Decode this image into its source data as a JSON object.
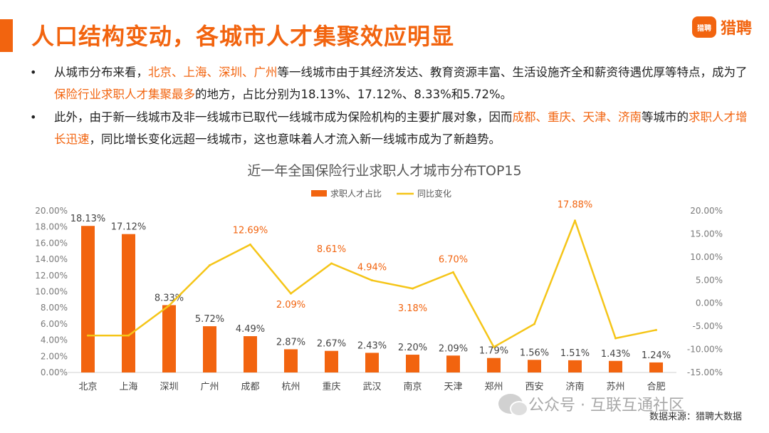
{
  "header": {
    "title": "人口结构变动，各城市人才集聚效应明显",
    "brand_icon": "猎聘",
    "brand_name": "猎聘"
  },
  "bullets": [
    {
      "marker": "•",
      "segments": [
        {
          "text": "从城市分布来看，",
          "hl": false
        },
        {
          "text": "北京、上海、深圳、广州",
          "hl": true
        },
        {
          "text": "等一线城市由于其经济发达、教育资源丰富、生活设施齐全和薪资待遇优厚等特点，成为了",
          "hl": false
        },
        {
          "text": "保险行业求职人才集聚最多",
          "hl": true
        },
        {
          "text": "的地方，占比分别为18.13%、17.12%、8.33%和5.72%。",
          "hl": false
        }
      ]
    },
    {
      "marker": "•",
      "segments": [
        {
          "text": "此外，由于新一线城市及非一线城市已取代一线城市成为保险机构的主要扩展对象，因而",
          "hl": false
        },
        {
          "text": "成都、重庆、天津、济南",
          "hl": true
        },
        {
          "text": "等城市的",
          "hl": false
        },
        {
          "text": "求职人才增长迅速",
          "hl": true
        },
        {
          "text": "，同比增长变化远超一线城市，这也意味着人才流入新一线城市成为了新趋势。",
          "hl": false
        }
      ]
    }
  ],
  "watermark": "公众号 · 互联互通社区",
  "source": "数据来源：猎聘大数据",
  "colors": {
    "accent": "#F2640F",
    "bar": "#F2640F",
    "line": "#F5C518",
    "axis_text": "#7a7a7a"
  },
  "chart_data": {
    "type": "bar+line",
    "title": "近一年全国保险行业求职人才城市分布TOP15",
    "categories": [
      "北京",
      "上海",
      "深圳",
      "广州",
      "成都",
      "杭州",
      "重庆",
      "武汉",
      "南京",
      "天津",
      "郑州",
      "西安",
      "济南",
      "苏州",
      "合肥"
    ],
    "series": [
      {
        "name": "求职人才占比",
        "kind": "bar",
        "axis": "left",
        "values": [
          18.13,
          17.12,
          8.33,
          5.72,
          4.49,
          2.87,
          2.67,
          2.43,
          2.2,
          2.09,
          1.79,
          1.56,
          1.51,
          1.43,
          1.24
        ],
        "labels": [
          "18.13%",
          "17.12%",
          "8.33%",
          "5.72%",
          "4.49%",
          "2.87%",
          "2.67%",
          "2.43%",
          "2.20%",
          "2.09%",
          "1.79%",
          "1.56%",
          "1.51%",
          "1.43%",
          "1.24%"
        ]
      },
      {
        "name": "同比变化",
        "kind": "line",
        "axis": "right",
        "values": [
          -7.0,
          -7.0,
          -0.5,
          8.2,
          12.69,
          2.09,
          8.61,
          4.94,
          3.18,
          6.7,
          -9.5,
          -4.5,
          17.88,
          -7.6,
          -5.8
        ],
        "point_labels": {
          "4": "12.69%",
          "5": "2.09%",
          "6": "8.61%",
          "7": "4.94%",
          "8": "3.18%",
          "9": "6.70%",
          "12": "17.88%"
        }
      }
    ],
    "left_axis": {
      "ylim": [
        0,
        20
      ],
      "tick_labels": [
        "0.00%",
        "2.00%",
        "4.00%",
        "6.00%",
        "8.00%",
        "10.00%",
        "12.00%",
        "14.00%",
        "16.00%",
        "18.00%",
        "20.00%"
      ]
    },
    "right_axis": {
      "ylim": [
        -15,
        20
      ],
      "tick_labels": [
        "-15.00%",
        "-10.00%",
        "-5.00%",
        "0.00%",
        "5.00%",
        "10.00%",
        "15.00%",
        "20.00%"
      ]
    },
    "legend_position": "top-center"
  }
}
